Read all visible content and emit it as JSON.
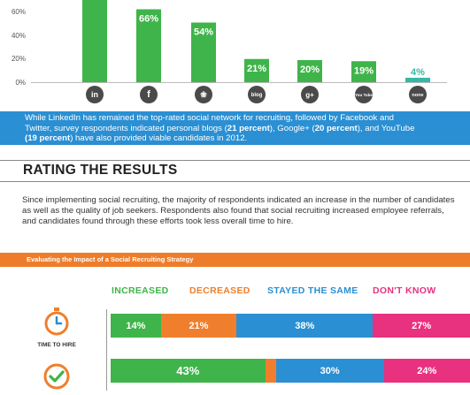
{
  "colors": {
    "green": "#3fb44a",
    "orange": "#ef7f2c",
    "blue": "#2a8fd3",
    "pink": "#e8317f",
    "teal": "#37b7a6"
  },
  "chart_data": [
    {
      "type": "bar",
      "categories": [
        "linkedin-icon",
        "facebook-icon",
        "twitter-icon",
        "blog",
        "google-plus-icon",
        "youtube-icon",
        "none"
      ],
      "values": [
        null,
        66,
        54,
        21,
        20,
        19,
        4
      ],
      "value_labels": [
        "",
        "66%",
        "54%",
        "21%",
        "20%",
        "19%",
        "4%"
      ],
      "yticks": [
        "60%",
        "40%",
        "20%",
        "0%"
      ],
      "ylim": [
        0,
        70
      ]
    },
    {
      "type": "bar",
      "stacked": true,
      "orientation": "horizontal",
      "series": [
        {
          "name": "INCREASED",
          "values": [
            14,
            43
          ]
        },
        {
          "name": "DECREASED",
          "values": [
            21,
            3
          ]
        },
        {
          "name": "STAYED THE SAME",
          "values": [
            38,
            30
          ]
        },
        {
          "name": "DON'T KNOW",
          "values": [
            27,
            24
          ]
        }
      ],
      "categories": [
        "TIME TO HIRE",
        ""
      ],
      "segment_labels": [
        [
          "14%",
          "21%",
          "38%",
          "27%"
        ],
        [
          "43%",
          "",
          "30%",
          "24%"
        ]
      ]
    }
  ],
  "top": {
    "icon_labels": {
      "blog": "blog",
      "google": "g+",
      "none": "none",
      "youtube": "You Tube"
    }
  },
  "blue_box": {
    "line1": "While LinkedIn has remained the top-rated social network for recruiting, followed by Facebook and",
    "line2": "Twitter, survey respondents indicated personal blogs (",
    "bold1": "21 percent",
    "line2b": "), Google+ (",
    "bold2": "20 percent",
    "line2c": "), and YouTube",
    "bold3": "(19 percent",
    "line3": ") have also provided viable candidates in 2012."
  },
  "rating": {
    "title": "RATING THE RESULTS",
    "body": "Since implementing social recruiting, the majority of respondents indicated an increase in the number of candidates as well as the quality of job seekers. Respondents also found that social recruiting increased employee referrals, and candidates found through these efforts took less overall time to hire."
  },
  "impact": {
    "title": "Evaluating the Impact of a Social Recruiting Strategy",
    "row1_label": "TIME TO HIRE"
  }
}
